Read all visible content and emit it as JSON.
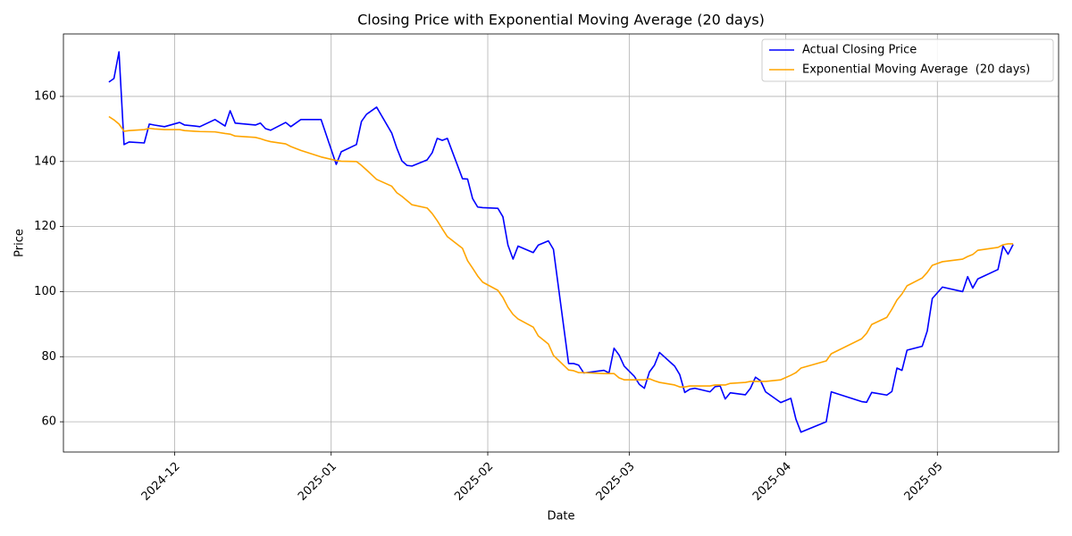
{
  "chart_data": {
    "type": "line",
    "title": "Closing Price with Exponential Moving Average (20 days)",
    "x_label": "Date",
    "y_label": "Price",
    "x": [
      "2024-11-18",
      "2024-11-19",
      "2024-11-20",
      "2024-11-21",
      "2024-11-22",
      "2024-11-25",
      "2024-11-26",
      "2024-11-27",
      "2024-11-29",
      "2024-12-02",
      "2024-12-03",
      "2024-12-05",
      "2024-12-06",
      "2024-12-09",
      "2024-12-11",
      "2024-12-12",
      "2024-12-13",
      "2024-12-17",
      "2024-12-18",
      "2024-12-19",
      "2024-12-20",
      "2024-12-23",
      "2024-12-24",
      "2024-12-26",
      "2024-12-30",
      "2025-01-02",
      "2025-01-03",
      "2025-01-06",
      "2025-01-07",
      "2025-01-08",
      "2025-01-10",
      "2025-01-13",
      "2025-01-14",
      "2025-01-15",
      "2025-01-16",
      "2025-01-17",
      "2025-01-20",
      "2025-01-21",
      "2025-01-22",
      "2025-01-23",
      "2025-01-24",
      "2025-01-27",
      "2025-01-28",
      "2025-01-29",
      "2025-01-30",
      "2025-01-31",
      "2025-02-03",
      "2025-02-04",
      "2025-02-05",
      "2025-02-06",
      "2025-02-07",
      "2025-02-10",
      "2025-02-11",
      "2025-02-13",
      "2025-02-14",
      "2025-02-17",
      "2025-02-18",
      "2025-02-19",
      "2025-02-20",
      "2025-02-24",
      "2025-02-25",
      "2025-02-26",
      "2025-02-27",
      "2025-02-28",
      "2025-03-02",
      "2025-03-03",
      "2025-03-04",
      "2025-03-05",
      "2025-03-06",
      "2025-03-07",
      "2025-03-10",
      "2025-03-11",
      "2025-03-12",
      "2025-03-13",
      "2025-03-14",
      "2025-03-17",
      "2025-03-18",
      "2025-03-19",
      "2025-03-20",
      "2025-03-21",
      "2025-03-24",
      "2025-03-25",
      "2025-03-26",
      "2025-03-27",
      "2025-03-28",
      "2025-03-31",
      "2025-04-02",
      "2025-04-03",
      "2025-04-04",
      "2025-04-09",
      "2025-04-10",
      "2025-04-16",
      "2025-04-17",
      "2025-04-18",
      "2025-04-21",
      "2025-04-22",
      "2025-04-23",
      "2025-04-24",
      "2025-04-25",
      "2025-04-28",
      "2025-04-29",
      "2025-04-30",
      "2025-05-02",
      "2025-05-06",
      "2025-05-07",
      "2025-05-08",
      "2025-05-09",
      "2025-05-13",
      "2025-05-14",
      "2025-05-15",
      "2025-05-16"
    ],
    "series": [
      {
        "name": "Actual Closing Price",
        "color": "#0000ff",
        "values": [
          164.4,
          165.5,
          173.7,
          145.2,
          146.0,
          145.7,
          151.5,
          151.2,
          150.7,
          152.0,
          151.2,
          150.9,
          150.7,
          152.9,
          150.9,
          155.6,
          151.8,
          151.2,
          151.8,
          150.1,
          149.6,
          152.0,
          150.7,
          152.9,
          152.9,
          139.1,
          143.0,
          145.2,
          152.3,
          154.5,
          156.7,
          148.7,
          144.1,
          140.2,
          138.8,
          138.6,
          140.5,
          142.7,
          147.1,
          146.5,
          147.1,
          134.7,
          134.6,
          128.6,
          126.0,
          125.8,
          125.6,
          123.0,
          114.3,
          110.0,
          114.0,
          112.0,
          114.3,
          115.6,
          113.0,
          77.9,
          77.9,
          77.4,
          75.0,
          75.8,
          75.0,
          82.6,
          80.5,
          77.1,
          74.0,
          71.5,
          70.3,
          75.3,
          77.4,
          81.3,
          77.1,
          74.5,
          69.0,
          70.0,
          70.3,
          69.2,
          70.8,
          71.0,
          67.0,
          68.9,
          68.3,
          70.3,
          73.7,
          72.6,
          69.2,
          65.9,
          67.2,
          60.8,
          56.8,
          60.0,
          69.2,
          66.2,
          66.0,
          69.0,
          68.2,
          69.3,
          76.5,
          75.8,
          82.0,
          83.2,
          87.9,
          97.9,
          101.4,
          100.0,
          104.6,
          101.1,
          103.9,
          106.8,
          114.0,
          111.5,
          114.5
        ]
      },
      {
        "name": "Exponential Moving Average  (20 days)",
        "color": "#ffa500",
        "values": [
          153.8,
          152.8,
          151.5,
          149.3,
          149.5,
          149.8,
          150.2,
          150.0,
          149.8,
          149.8,
          149.5,
          149.3,
          149.2,
          149.1,
          148.6,
          148.4,
          147.8,
          147.4,
          147.0,
          146.5,
          146.1,
          145.4,
          144.6,
          143.4,
          141.4,
          140.3,
          140.1,
          140.0,
          138.8,
          137.4,
          134.5,
          132.4,
          130.4,
          129.3,
          128.0,
          126.7,
          125.7,
          124.0,
          121.8,
          119.3,
          116.9,
          113.3,
          109.5,
          107.2,
          104.8,
          102.9,
          100.4,
          98.2,
          95.2,
          93.0,
          91.6,
          89.1,
          86.4,
          83.9,
          80.4,
          75.9,
          75.7,
          75.1,
          75.1,
          74.8,
          74.8,
          74.8,
          73.5,
          72.9,
          72.9,
          72.9,
          72.9,
          73.2,
          72.6,
          72.1,
          71.3,
          70.7,
          70.7,
          71.0,
          71.0,
          71.0,
          71.3,
          71.3,
          71.3,
          71.8,
          72.1,
          72.4,
          72.4,
          72.4,
          72.4,
          72.9,
          74.3,
          75.1,
          76.5,
          78.7,
          80.9,
          85.5,
          87.2,
          89.9,
          92.1,
          94.6,
          97.4,
          99.3,
          101.8,
          104.2,
          105.9,
          108.1,
          109.2,
          110.0,
          110.8,
          111.4,
          112.7,
          113.6,
          114.4,
          114.7,
          114.7
        ]
      }
    ],
    "xlim": [
      "2024-11-09",
      "2025-05-25"
    ],
    "xticks": [
      {
        "value": "2024-12-01",
        "label": "2024-12"
      },
      {
        "value": "2025-01-01",
        "label": "2025-01"
      },
      {
        "value": "2025-02-01",
        "label": "2025-02"
      },
      {
        "value": "2025-03-01",
        "label": "2025-03"
      },
      {
        "value": "2025-04-01",
        "label": "2025-04"
      },
      {
        "value": "2025-05-01",
        "label": "2025-05"
      }
    ],
    "ylim": [
      50.7,
      179.2
    ],
    "yticks": [
      60,
      80,
      100,
      120,
      140,
      160
    ],
    "grid": true,
    "legend": "upper right"
  }
}
